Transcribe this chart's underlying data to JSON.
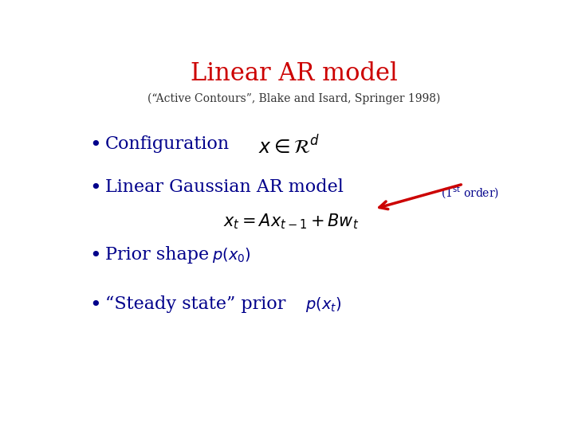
{
  "title": "Linear AR model",
  "title_color": "#cc0000",
  "title_fontsize": 22,
  "subtitle": "(“Active Contours”, Blake and Isard, Springer 1998)",
  "subtitle_color": "#333333",
  "subtitle_fontsize": 10,
  "bullet_color": "#00008B",
  "bg_color": "#ffffff",
  "bullet1_text": "Configuration",
  "bullet1_math": "$x \\in \\mathcal{R}^d$",
  "bullet2_text": "Linear Gaussian AR model",
  "bullet2_math": "$x_t = Ax_{t-1} + Bw_t$",
  "bullet3_text": "Prior shape ",
  "bullet3_math": "$p(x_0)$",
  "bullet4_text": "“Steady state” prior  ",
  "bullet4_math": "$p(x_t)$",
  "order_text": "(1",
  "order_color": "#00008B",
  "arrow_color": "#cc0000",
  "bullet_fontsize": 16,
  "math_fontsize": 14,
  "eq_fontsize": 15
}
